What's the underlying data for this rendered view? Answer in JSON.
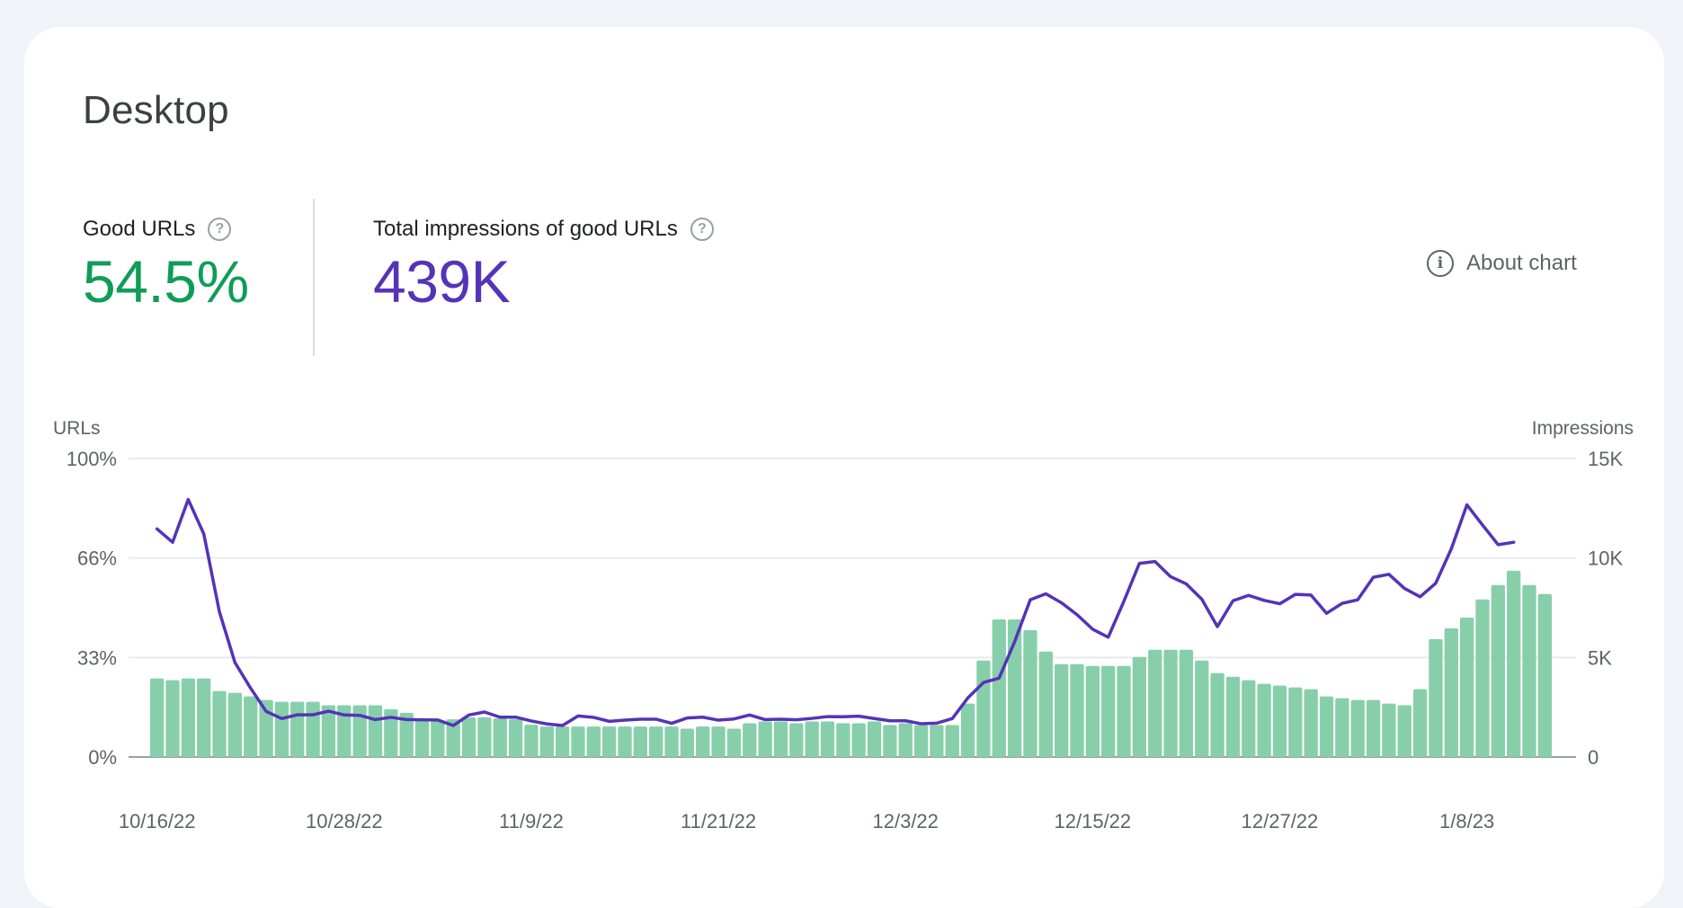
{
  "card": {
    "title": "Desktop",
    "about_chart_label": "About chart",
    "about_chart_icon": "info-icon",
    "help_icon": "help-circle-icon"
  },
  "metrics": [
    {
      "label": "Good URLs",
      "value": "54.5%",
      "color": "#0f9d58"
    },
    {
      "label": "Total impressions of good URLs",
      "value": "439K",
      "color": "#5533b8"
    }
  ],
  "colors": {
    "bar": "#87cfab",
    "line": "#5533b8",
    "grid": "#e8eaed",
    "baseline": "#9aa0a6",
    "background": "#f0f4f9"
  },
  "chart_data": {
    "type": "bar+line",
    "title": "",
    "left_axis": {
      "label": "URLs",
      "ticks": [
        "0%",
        "33%",
        "66%",
        "100%"
      ],
      "range": [
        0,
        100
      ],
      "unit": "%"
    },
    "right_axis": {
      "label": "Impressions",
      "ticks": [
        "0",
        "5K",
        "10K",
        "15K"
      ],
      "range": [
        0,
        15000
      ]
    },
    "x_tick_labels": [
      "10/16/22",
      "10/28/22",
      "11/9/22",
      "11/21/22",
      "12/3/22",
      "12/15/22",
      "12/27/22",
      "1/8/23"
    ],
    "x_tick_every_days": 12,
    "start_date": "10/16/22",
    "grid": true,
    "series": [
      {
        "name": "Good URLs",
        "type": "bar",
        "axis": "left",
        "values": [
          26.3,
          25.7,
          26.3,
          26.3,
          22.1,
          21.5,
          20.3,
          19.1,
          18.5,
          18.5,
          18.5,
          17.3,
          17.3,
          17.3,
          17.3,
          16.0,
          14.8,
          12.8,
          12.3,
          12.6,
          13.3,
          13.3,
          12.9,
          12.6,
          10.8,
          10.2,
          10.2,
          10.2,
          10.2,
          10.2,
          10.2,
          10.2,
          10.2,
          10.2,
          9.5,
          10.2,
          10.2,
          9.5,
          11.3,
          11.9,
          11.9,
          11.3,
          11.9,
          11.9,
          11.3,
          11.3,
          11.9,
          10.7,
          11.3,
          10.7,
          10.7,
          10.7,
          17.9,
          32.3,
          46.1,
          46.1,
          42.5,
          35.3,
          31.1,
          31.1,
          30.5,
          30.5,
          30.5,
          33.5,
          35.9,
          35.9,
          35.9,
          32.3,
          28.1,
          26.9,
          25.7,
          24.5,
          23.9,
          23.3,
          22.7,
          20.3,
          19.7,
          19.1,
          19.1,
          17.9,
          17.3,
          22.7,
          39.5,
          43.1,
          46.7,
          52.8,
          57.6,
          62.4,
          57.6,
          54.6
        ]
      },
      {
        "name": "Impressions",
        "type": "line",
        "axis": "right",
        "values": [
          11460,
          10790,
          12940,
          11210,
          7300,
          4740,
          3460,
          2290,
          1930,
          2120,
          2120,
          2300,
          2110,
          2090,
          1880,
          1990,
          1880,
          1870,
          1860,
          1580,
          2110,
          2260,
          2000,
          2000,
          1810,
          1660,
          1580,
          2060,
          1990,
          1790,
          1850,
          1900,
          1900,
          1690,
          1960,
          2000,
          1850,
          1910,
          2110,
          1880,
          1900,
          1870,
          1940,
          2030,
          2020,
          2050,
          1930,
          1820,
          1820,
          1670,
          1700,
          1930,
          2970,
          3740,
          3960,
          5800,
          7900,
          8200,
          7750,
          7150,
          6420,
          6020,
          7820,
          9730,
          9820,
          9060,
          8700,
          7930,
          6550,
          7850,
          8120,
          7870,
          7700,
          8170,
          8140,
          7220,
          7720,
          7900,
          9030,
          9180,
          8470,
          8050,
          8730,
          10460,
          12670,
          11660,
          10670,
          10790,
          null,
          null
        ]
      }
    ]
  }
}
